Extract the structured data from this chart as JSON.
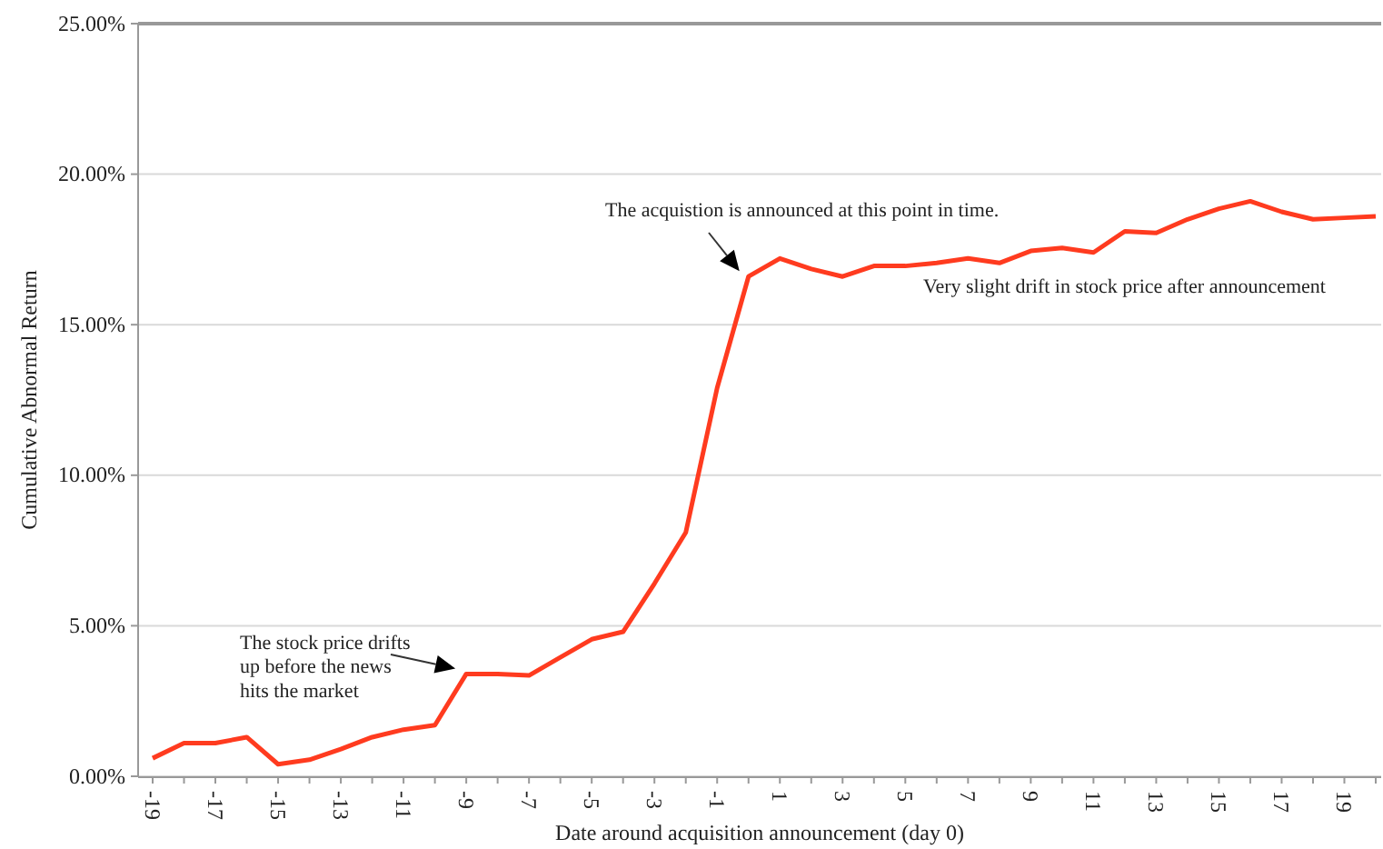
{
  "chart_data": {
    "type": "line",
    "xlabel": "Date around acquisition announcement (day 0)",
    "ylabel": "Cumulative Abnormal Return",
    "categories": [
      "-19",
      null,
      "-17",
      null,
      "-15",
      null,
      "-13",
      null,
      "-11",
      null,
      "-9",
      null,
      "-7",
      null,
      "-5",
      null,
      "-3",
      null,
      "-1",
      null,
      "1",
      null,
      "3",
      null,
      "5",
      null,
      "7",
      null,
      "9",
      null,
      "11",
      null,
      "13",
      null,
      "15",
      null,
      "17",
      null,
      "19",
      null
    ],
    "series": [
      {
        "color": "#ff3b1f",
        "values": [
          0.6,
          1.1,
          1.1,
          1.3,
          0.4,
          0.55,
          0.9,
          1.3,
          1.55,
          1.7,
          3.4,
          3.4,
          3.35,
          3.95,
          4.55,
          4.8,
          6.4,
          8.1,
          12.9,
          16.6,
          17.2,
          16.85,
          16.6,
          16.95,
          16.95,
          17.05,
          17.2,
          17.05,
          17.45,
          17.55,
          17.4,
          18.1,
          18.05,
          18.5,
          18.85,
          19.1,
          18.75,
          18.5,
          18.55,
          18.6
        ]
      }
    ],
    "ylim": [
      0,
      25
    ],
    "yticks": [
      {
        "value": 0,
        "label": "0.00%"
      },
      {
        "value": 5,
        "label": "5.00%"
      },
      {
        "value": 10,
        "label": "10.00%"
      },
      {
        "value": 15,
        "label": "15.00%"
      },
      {
        "value": 20,
        "label": "20.00%"
      },
      {
        "value": 25,
        "label": "25.00%"
      }
    ],
    "grid": "y",
    "marker": "none",
    "line_style": "solid",
    "annotations": [
      {
        "text": "The stock price drifts up before the news hits the market",
        "x": "-9",
        "y": 3.4
      },
      {
        "text": "The acquistion is announced at this point in time.",
        "y": 16.6
      },
      "Very slight drift in stock price after announcement"
    ]
  }
}
